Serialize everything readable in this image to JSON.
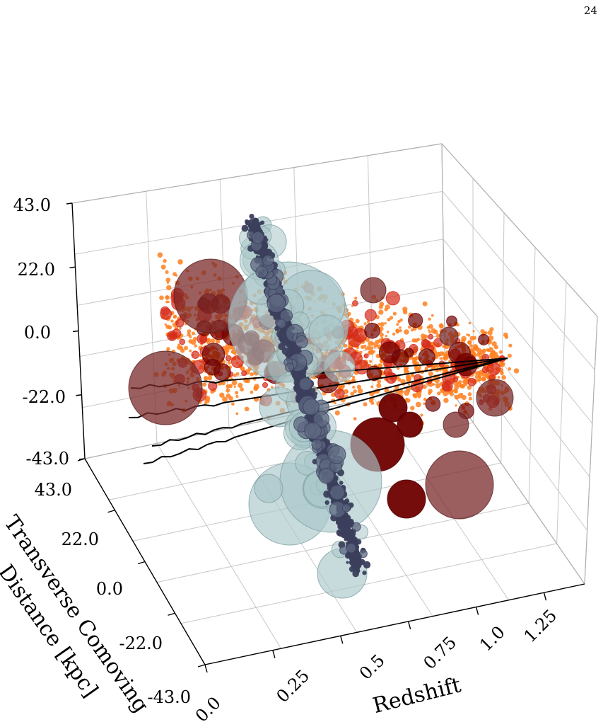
{
  "page": {
    "number": "24"
  },
  "chart_data": {
    "type": "scatter3d",
    "title": "",
    "xlabel": "Redshift",
    "ylabel": "Transverse Comoving Distance [kpc]",
    "ylabel_lines": [
      "Transverse Comoving",
      "Distance [kpc]"
    ],
    "zlabel": "",
    "xlim": [
      0.0,
      1.4
    ],
    "ylim": [
      -43.0,
      43.0
    ],
    "zlim": [
      -43.0,
      43.0
    ],
    "x_ticks": [
      "0.0",
      "0.25",
      "0.5",
      "0.75",
      "1.0",
      "1.25"
    ],
    "y_ticks": [
      "43.0",
      "22.0",
      "0.0",
      "-22.0",
      "-43.0"
    ],
    "z_ticks": [
      "43.0",
      "22.0",
      "0.0",
      "-22.0",
      "-43.0"
    ],
    "grid": true,
    "colors": {
      "halo_large": "#7b2a2a",
      "halo_dark": "#6e0000",
      "halo_red": "#d42a1a",
      "halo_orange": "#ff7f1e",
      "screen_pale": "#a9c6c9",
      "screen_navy": "#3b3f5c",
      "sightline": "#000000"
    },
    "series": [],
    "features": {
      "sightline_count": 4,
      "sightline_convergence_redshift": 1.4,
      "screen_redshift": 0.5
    }
  }
}
